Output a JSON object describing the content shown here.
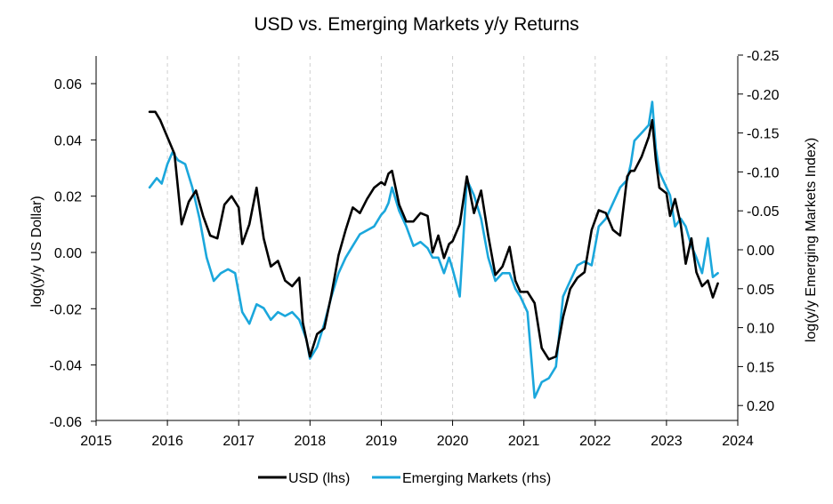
{
  "chart_data": {
    "type": "line",
    "title": "USD vs. Emerging Markets y/y Returns",
    "xlabel": "",
    "ylabel_left": "log(y/y US Dollar)",
    "ylabel_right": "log(y/y Emerging Markets Index)",
    "xlim": [
      2015,
      2024
    ],
    "ylim_left": [
      -0.06,
      0.07
    ],
    "ylim_right": [
      -0.25,
      0.24
    ],
    "right_axis_inverted": true,
    "grid": "vertical dashed",
    "x_ticks": [
      "2015",
      "2016",
      "2017",
      "2018",
      "2019",
      "2020",
      "2021",
      "2022",
      "2023",
      "2024"
    ],
    "y_ticks_left": [
      "0.06",
      "0.04",
      "0.02",
      "0.00",
      "-0.02",
      "-0.04",
      "-0.06"
    ],
    "y_ticks_right": [
      "-0.25",
      "-0.20",
      "-0.15",
      "-0.10",
      "-0.05",
      "0.00",
      "0.05",
      "0.10",
      "0.15",
      "0.20"
    ],
    "y_ticks_left_values": [
      0.06,
      0.04,
      0.02,
      0.0,
      -0.02,
      -0.04,
      -0.06
    ],
    "y_ticks_right_values": [
      -0.25,
      -0.2,
      -0.15,
      -0.1,
      -0.05,
      0.0,
      0.05,
      0.1,
      0.15,
      0.2
    ],
    "legend_position": "bottom-center",
    "series": [
      {
        "name": "USD (lhs)",
        "axis": "left",
        "color": "#000000",
        "points": [
          [
            2015.75,
            0.05
          ],
          [
            2015.83,
            0.05
          ],
          [
            2015.9,
            0.047
          ],
          [
            2016.0,
            0.041
          ],
          [
            2016.1,
            0.035
          ],
          [
            2016.2,
            0.01
          ],
          [
            2016.3,
            0.018
          ],
          [
            2016.4,
            0.022
          ],
          [
            2016.5,
            0.013
          ],
          [
            2016.6,
            0.006
          ],
          [
            2016.7,
            0.005
          ],
          [
            2016.8,
            0.017
          ],
          [
            2016.9,
            0.02
          ],
          [
            2017.0,
            0.016
          ],
          [
            2017.05,
            0.003
          ],
          [
            2017.15,
            0.01
          ],
          [
            2017.25,
            0.023
          ],
          [
            2017.35,
            0.005
          ],
          [
            2017.45,
            -0.005
          ],
          [
            2017.55,
            -0.003
          ],
          [
            2017.65,
            -0.01
          ],
          [
            2017.75,
            -0.012
          ],
          [
            2017.85,
            -0.009
          ],
          [
            2017.9,
            -0.025
          ],
          [
            2017.95,
            -0.031
          ],
          [
            2018.0,
            -0.037
          ],
          [
            2018.1,
            -0.029
          ],
          [
            2018.2,
            -0.027
          ],
          [
            2018.3,
            -0.015
          ],
          [
            2018.4,
            -0.001
          ],
          [
            2018.5,
            0.008
          ],
          [
            2018.6,
            0.016
          ],
          [
            2018.7,
            0.014
          ],
          [
            2018.8,
            0.019
          ],
          [
            2018.9,
            0.023
          ],
          [
            2019.0,
            0.025
          ],
          [
            2019.05,
            0.024
          ],
          [
            2019.1,
            0.028
          ],
          [
            2019.15,
            0.029
          ],
          [
            2019.25,
            0.017
          ],
          [
            2019.35,
            0.011
          ],
          [
            2019.45,
            0.011
          ],
          [
            2019.55,
            0.014
          ],
          [
            2019.65,
            0.013
          ],
          [
            2019.72,
            0.0
          ],
          [
            2019.8,
            0.006
          ],
          [
            2019.88,
            -0.002
          ],
          [
            2019.95,
            0.003
          ],
          [
            2020.0,
            0.004
          ],
          [
            2020.1,
            0.01
          ],
          [
            2020.2,
            0.027
          ],
          [
            2020.3,
            0.014
          ],
          [
            2020.4,
            0.022
          ],
          [
            2020.5,
            0.006
          ],
          [
            2020.6,
            -0.008
          ],
          [
            2020.7,
            -0.005
          ],
          [
            2020.8,
            0.002
          ],
          [
            2020.88,
            -0.01
          ],
          [
            2020.95,
            -0.014
          ],
          [
            2021.05,
            -0.014
          ],
          [
            2021.15,
            -0.018
          ],
          [
            2021.25,
            -0.034
          ],
          [
            2021.35,
            -0.038
          ],
          [
            2021.45,
            -0.037
          ],
          [
            2021.55,
            -0.023
          ],
          [
            2021.65,
            -0.013
          ],
          [
            2021.75,
            -0.009
          ],
          [
            2021.85,
            -0.007
          ],
          [
            2021.95,
            0.008
          ],
          [
            2022.05,
            0.015
          ],
          [
            2022.15,
            0.014
          ],
          [
            2022.25,
            0.008
          ],
          [
            2022.35,
            0.006
          ],
          [
            2022.45,
            0.027
          ],
          [
            2022.5,
            0.029
          ],
          [
            2022.55,
            0.029
          ],
          [
            2022.65,
            0.034
          ],
          [
            2022.75,
            0.041
          ],
          [
            2022.8,
            0.047
          ],
          [
            2022.85,
            0.033
          ],
          [
            2022.9,
            0.023
          ],
          [
            2023.0,
            0.021
          ],
          [
            2023.05,
            0.013
          ],
          [
            2023.12,
            0.019
          ],
          [
            2023.2,
            0.01
          ],
          [
            2023.27,
            -0.004
          ],
          [
            2023.35,
            0.005
          ],
          [
            2023.42,
            -0.007
          ],
          [
            2023.5,
            -0.012
          ],
          [
            2023.58,
            -0.01
          ],
          [
            2023.65,
            -0.016
          ],
          [
            2023.72,
            -0.011
          ]
        ]
      },
      {
        "name": "Emerging Markets (rhs)",
        "axis": "right",
        "color": "#1ba7dc",
        "points": [
          [
            2015.75,
            -0.08
          ],
          [
            2015.85,
            -0.092
          ],
          [
            2015.92,
            -0.085
          ],
          [
            2016.0,
            -0.11
          ],
          [
            2016.07,
            -0.125
          ],
          [
            2016.15,
            -0.115
          ],
          [
            2016.25,
            -0.11
          ],
          [
            2016.35,
            -0.08
          ],
          [
            2016.45,
            -0.04
          ],
          [
            2016.55,
            0.01
          ],
          [
            2016.65,
            0.04
          ],
          [
            2016.75,
            0.03
          ],
          [
            2016.85,
            0.025
          ],
          [
            2016.95,
            0.03
          ],
          [
            2017.05,
            0.08
          ],
          [
            2017.15,
            0.095
          ],
          [
            2017.25,
            0.07
          ],
          [
            2017.35,
            0.075
          ],
          [
            2017.45,
            0.09
          ],
          [
            2017.55,
            0.08
          ],
          [
            2017.65,
            0.085
          ],
          [
            2017.75,
            0.08
          ],
          [
            2017.85,
            0.09
          ],
          [
            2017.95,
            0.115
          ],
          [
            2018.0,
            0.14
          ],
          [
            2018.1,
            0.125
          ],
          [
            2018.2,
            0.095
          ],
          [
            2018.3,
            0.06
          ],
          [
            2018.4,
            0.03
          ],
          [
            2018.5,
            0.01
          ],
          [
            2018.6,
            -0.005
          ],
          [
            2018.7,
            -0.02
          ],
          [
            2018.8,
            -0.025
          ],
          [
            2018.9,
            -0.03
          ],
          [
            2019.0,
            -0.045
          ],
          [
            2019.05,
            -0.05
          ],
          [
            2019.1,
            -0.06
          ],
          [
            2019.15,
            -0.08
          ],
          [
            2019.25,
            -0.05
          ],
          [
            2019.35,
            -0.03
          ],
          [
            2019.45,
            -0.005
          ],
          [
            2019.55,
            -0.01
          ],
          [
            2019.65,
            -0.002
          ],
          [
            2019.72,
            0.01
          ],
          [
            2019.8,
            0.01
          ],
          [
            2019.88,
            0.03
          ],
          [
            2019.95,
            0.01
          ],
          [
            2020.0,
            0.025
          ],
          [
            2020.1,
            0.06
          ],
          [
            2020.2,
            -0.09
          ],
          [
            2020.3,
            -0.07
          ],
          [
            2020.4,
            -0.04
          ],
          [
            2020.5,
            0.01
          ],
          [
            2020.6,
            0.04
          ],
          [
            2020.7,
            0.03
          ],
          [
            2020.8,
            0.03
          ],
          [
            2020.88,
            0.05
          ],
          [
            2020.95,
            0.06
          ],
          [
            2021.05,
            0.08
          ],
          [
            2021.15,
            0.19
          ],
          [
            2021.25,
            0.17
          ],
          [
            2021.35,
            0.165
          ],
          [
            2021.45,
            0.15
          ],
          [
            2021.55,
            0.06
          ],
          [
            2021.65,
            0.04
          ],
          [
            2021.75,
            0.02
          ],
          [
            2021.85,
            0.015
          ],
          [
            2021.95,
            0.02
          ],
          [
            2022.05,
            -0.03
          ],
          [
            2022.15,
            -0.04
          ],
          [
            2022.25,
            -0.06
          ],
          [
            2022.35,
            -0.08
          ],
          [
            2022.45,
            -0.09
          ],
          [
            2022.5,
            -0.11
          ],
          [
            2022.55,
            -0.14
          ],
          [
            2022.65,
            -0.15
          ],
          [
            2022.75,
            -0.16
          ],
          [
            2022.8,
            -0.19
          ],
          [
            2022.85,
            -0.13
          ],
          [
            2022.9,
            -0.1
          ],
          [
            2023.0,
            -0.08
          ],
          [
            2023.05,
            -0.07
          ],
          [
            2023.12,
            -0.03
          ],
          [
            2023.2,
            -0.04
          ],
          [
            2023.27,
            -0.03
          ],
          [
            2023.35,
            -0.005
          ],
          [
            2023.42,
            0.01
          ],
          [
            2023.5,
            0.03
          ],
          [
            2023.58,
            -0.015
          ],
          [
            2023.65,
            0.035
          ],
          [
            2023.72,
            0.03
          ]
        ]
      }
    ]
  }
}
